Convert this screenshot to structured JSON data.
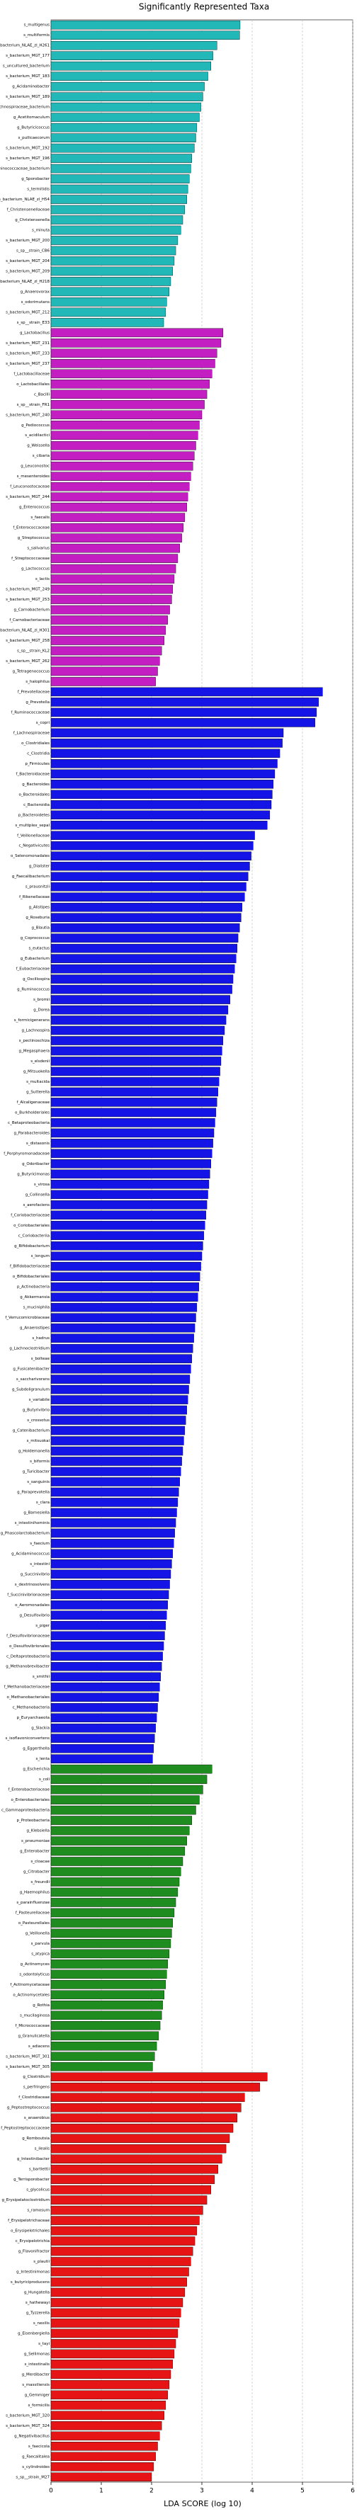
{
  "chart_data": {
    "type": "bar",
    "orientation": "horizontal",
    "title": "Significantly Represented Taxa",
    "xlabel": "LDA SCORE (log 10)",
    "xlim": [
      0,
      6
    ],
    "xticks": [
      0,
      1,
      2,
      3,
      4,
      5,
      6
    ],
    "grid": true,
    "groups": [
      {
        "color": "#22b8b8",
        "categories": [
          "s_multigenus",
          "s_multiformis",
          "s_bacterium_NLAE_zl_H261",
          "s_bacterium_MGT_177",
          "s_uncultured_bacterium",
          "s_bacterium_MGT_183",
          "g_Acidaminobacter",
          "s_bacterium_MGT_189",
          "s_Lachnospiraceae_bacterium",
          "g_Acetitomaculum",
          "g_Butyricicoccus",
          "s_pullicaecorum",
          "s_bacterium_MGT_192",
          "s_bacterium_MGT_196",
          "s_Ruminococcaceae_bacterium",
          "g_Sporobacter",
          "s_termitidis",
          "s_bacterium_NLAE_zl_H54",
          "f_Christensenellaceae",
          "g_Christensenella",
          "s_minuta",
          "s_bacterium_MGT_200",
          "s_sp__strain_CB6",
          "s_bacterium_MGT_204",
          "s_bacterium_MGT_209",
          "s_bacterium_NLAE_zl_H218",
          "g_Anaerovorax",
          "s_odorimutans",
          "s_bacterium_MGT_212",
          "s_sp__strain_E33"
        ],
        "values": [
          3.76,
          3.75,
          3.3,
          3.22,
          3.18,
          3.12,
          3.05,
          3.02,
          2.98,
          2.95,
          2.9,
          2.88,
          2.85,
          2.8,
          2.78,
          2.75,
          2.72,
          2.7,
          2.66,
          2.62,
          2.58,
          2.52,
          2.48,
          2.45,
          2.42,
          2.38,
          2.35,
          2.3,
          2.28,
          2.24
        ]
      },
      {
        "color": "#c21ec2",
        "categories": [
          "g_Lactobacillus",
          "s_bacterium_MGT_231",
          "s_bacterium_MGT_233",
          "s_bacterium_MGT_237",
          "f_Lactobacillaceae",
          "o_Lactobacillales",
          "c_Bacilli",
          "s_sp__strain_FR1",
          "s_bacterium_MGT_240",
          "g_Pediococcus",
          "s_acidilactici",
          "g_Weissella",
          "s_cibaria",
          "g_Leuconostoc",
          "s_mesenteroides",
          "f_Leuconostocaceae",
          "s_bacterium_MGT_244",
          "g_Enterococcus",
          "s_faecalis",
          "f_Enterococcaceae",
          "g_Streptococcus",
          "s_salivarius",
          "f_Streptococcaceae",
          "g_Lactococcus",
          "s_lactis",
          "s_bacterium_MGT_249",
          "s_bacterium_MGT_253",
          "g_Carnobacterium",
          "f_Carnobacteriaceae",
          "s_bacterium_NLAE_zl_H301",
          "s_bacterium_MGT_258",
          "s_sp__strain_KL2",
          "s_bacterium_MGT_262",
          "g_Tetragenococcus",
          "s_halophilus"
        ],
        "values": [
          3.42,
          3.38,
          3.3,
          3.26,
          3.2,
          3.15,
          3.1,
          3.05,
          3.0,
          2.95,
          2.92,
          2.88,
          2.85,
          2.82,
          2.78,
          2.75,
          2.72,
          2.7,
          2.66,
          2.63,
          2.6,
          2.56,
          2.52,
          2.48,
          2.45,
          2.42,
          2.4,
          2.36,
          2.32,
          2.28,
          2.25,
          2.2,
          2.16,
          2.12,
          2.08
        ]
      },
      {
        "color": "#1414e6",
        "categories": [
          "f_Prevotellaceae",
          "g_Prevotella",
          "f_Ruminococcaceae",
          "s_copri",
          "f_Lachnospiraceae",
          "o_Clostridiales",
          "c_Clostridia",
          "p_Firmicutes",
          "f_Bacteroidaceae",
          "g_Bacteroides",
          "o_Bacteroidales",
          "c_Bacteroidia",
          "p_Bacteroidetes",
          "s_multiplex_sepal",
          "f_Veillonellaceae",
          "c_Negativicutes",
          "o_Selenomonadales",
          "g_Dialister",
          "g_Faecalibacterium",
          "s_prausnitzii",
          "f_Rikenellaceae",
          "g_Alistipes",
          "g_Roseburia",
          "g_Blautia",
          "g_Coprococcus",
          "s_eutactus",
          "g_Eubacterium",
          "f_Eubacteriaceae",
          "g_Oscillospira",
          "g_Ruminococcus",
          "s_bromii",
          "g_Dorea",
          "s_formicigenerans",
          "g_Lachnospira",
          "s_pectinoschiza",
          "g_Megasphaera",
          "s_elsdenii",
          "g_Mitsuokella",
          "s_multacida",
          "g_Sutterella",
          "f_Alcaligenaceae",
          "o_Burkholderiales",
          "c_Betaproteobacteria",
          "g_Parabacteroides",
          "s_distasonis",
          "f_Porphyromonadaceae",
          "g_Odoribacter",
          "g_Butyricimonas",
          "s_virosa",
          "g_Collinsella",
          "s_aerofaciens",
          "f_Coriobacteriaceae",
          "o_Coriobacteriales",
          "c_Coriobacteriia",
          "g_Bifidobacterium",
          "s_longum",
          "f_Bifidobacteriaceae",
          "o_Bifidobacteriales",
          "p_Actinobacteria",
          "g_Akkermansia",
          "s_muciniphila",
          "f_Verrucomicrobiaceae",
          "g_Anaerostipes",
          "s_hadrus",
          "g_Lachnoclostridium",
          "s_bolteae",
          "g_Fusicatenibacter",
          "s_saccharivorans",
          "g_Subdoligranulum",
          "s_variabile",
          "g_Butyrivibrio",
          "s_crossotus",
          "g_Catenibacterium",
          "s_mitsuokai",
          "g_Holdemanella",
          "s_biformis",
          "g_Turicibacter",
          "s_sanguinis",
          "g_Paraprevotella",
          "s_clara",
          "g_Barnesiella",
          "s_intestinihominis",
          "g_Phascolarctobacterium",
          "s_faecium",
          "g_Acidaminococcus",
          "s_intestini",
          "g_Succinivibrio",
          "s_dextrinosolvens",
          "f_Succinivibrionaceae",
          "o_Aeromonadales",
          "g_Desulfovibrio",
          "s_piger",
          "f_Desulfovibrionaceae",
          "o_Desulfovibrionales",
          "c_Deltaproteobacteria",
          "g_Methanobrevibacter",
          "s_smithii",
          "f_Methanobacteriaceae",
          "o_Methanobacteriales",
          "c_Methanobacteria",
          "p_Euryarchaeota",
          "g_Slackia",
          "s_isoflavoniconvertens",
          "g_Eggerthella",
          "s_lenta"
        ],
        "values": [
          5.4,
          5.32,
          5.28,
          5.25,
          4.62,
          4.6,
          4.55,
          4.5,
          4.45,
          4.42,
          4.4,
          4.38,
          4.35,
          4.3,
          4.05,
          4.02,
          3.98,
          3.95,
          3.92,
          3.88,
          3.85,
          3.8,
          3.78,
          3.75,
          3.72,
          3.7,
          3.68,
          3.65,
          3.62,
          3.6,
          3.56,
          3.52,
          3.48,
          3.45,
          3.42,
          3.4,
          3.38,
          3.36,
          3.34,
          3.32,
          3.3,
          3.28,
          3.26,
          3.24,
          3.22,
          3.2,
          3.18,
          3.16,
          3.14,
          3.12,
          3.1,
          3.08,
          3.06,
          3.04,
          3.02,
          3.0,
          2.98,
          2.96,
          2.94,
          2.92,
          2.9,
          2.88,
          2.86,
          2.84,
          2.82,
          2.8,
          2.78,
          2.76,
          2.74,
          2.72,
          2.7,
          2.68,
          2.66,
          2.64,
          2.62,
          2.6,
          2.58,
          2.56,
          2.54,
          2.52,
          2.5,
          2.48,
          2.46,
          2.44,
          2.42,
          2.4,
          2.38,
          2.36,
          2.34,
          2.32,
          2.3,
          2.28,
          2.26,
          2.24,
          2.22,
          2.2,
          2.18,
          2.16,
          2.14,
          2.12,
          2.1,
          2.08,
          2.06,
          2.04,
          2.02
        ]
      },
      {
        "color": "#1e8c1e",
        "categories": [
          "g_Escherichia",
          "s_coli",
          "f_Enterobacteriaceae",
          "o_Enterobacteriales",
          "c_Gammaproteobacteria",
          "p_Proteobacteria",
          "g_Klebsiella",
          "s_pneumoniae",
          "g_Enterobacter",
          "s_cloacae",
          "g_Citrobacter",
          "s_freundii",
          "g_Haemophilus",
          "s_parainfluenzae",
          "f_Pasteurellaceae",
          "o_Pasteurellales",
          "g_Veillonella",
          "s_parvula",
          "s_atypica",
          "g_Actinomyces",
          "s_odontolyticus",
          "f_Actinomycetaceae",
          "o_Actinomycetales",
          "g_Rothia",
          "s_mucilaginosa",
          "f_Micrococcaceae",
          "g_Granulicatella",
          "s_adiacens",
          "s_bacterium_MGT_301",
          "s_bacterium_MGT_305"
        ],
        "values": [
          3.2,
          3.1,
          3.02,
          2.95,
          2.88,
          2.8,
          2.75,
          2.7,
          2.66,
          2.62,
          2.58,
          2.55,
          2.52,
          2.48,
          2.45,
          2.42,
          2.4,
          2.38,
          2.35,
          2.32,
          2.3,
          2.28,
          2.25,
          2.22,
          2.2,
          2.17,
          2.14,
          2.1,
          2.06,
          2.02
        ]
      },
      {
        "color": "#e61414",
        "categories": [
          "g_Clostridium",
          "s_perfringens",
          "f_Clostridiaceae",
          "g_Peptostreptococcus",
          "s_anaerobius",
          "f_Peptostreptococcaceae",
          "g_Romboutsia",
          "s_ilealis",
          "g_Intestinibacter",
          "s_bartlettii",
          "g_Terrisporobacter",
          "s_glycolicus",
          "g_Erysipelatoclostridium",
          "s_ramosum",
          "f_Erysipelotrichaceae",
          "o_Erysipelotrichales",
          "c_Erysipelotrichia",
          "g_Flavonifractor",
          "s_plautii",
          "g_Intestinimonas",
          "s_butyriciproducens",
          "g_Hungatella",
          "s_hathewayi",
          "g_Tyzzerella",
          "s_nexilis",
          "g_Eisenbergiella",
          "s_tayi",
          "g_Sellimonas",
          "s_intestinalis",
          "g_Merdibacter",
          "s_massiliensis",
          "g_Gemmiger",
          "s_formicilis",
          "s_bacterium_MGT_320",
          "s_bacterium_MGT_324",
          "g_Negativibacillus",
          "s_faecicola",
          "g_Faecalitalea",
          "s_cylindroides",
          "s_sp__strain_M27"
        ],
        "values": [
          4.3,
          4.15,
          3.85,
          3.78,
          3.7,
          3.62,
          3.55,
          3.48,
          3.4,
          3.32,
          3.25,
          3.18,
          3.1,
          3.02,
          2.95,
          2.9,
          2.86,
          2.82,
          2.78,
          2.74,
          2.7,
          2.66,
          2.62,
          2.58,
          2.55,
          2.52,
          2.48,
          2.45,
          2.42,
          2.38,
          2.35,
          2.32,
          2.28,
          2.25,
          2.2,
          2.16,
          2.12,
          2.08,
          2.04,
          2.0
        ]
      }
    ]
  }
}
